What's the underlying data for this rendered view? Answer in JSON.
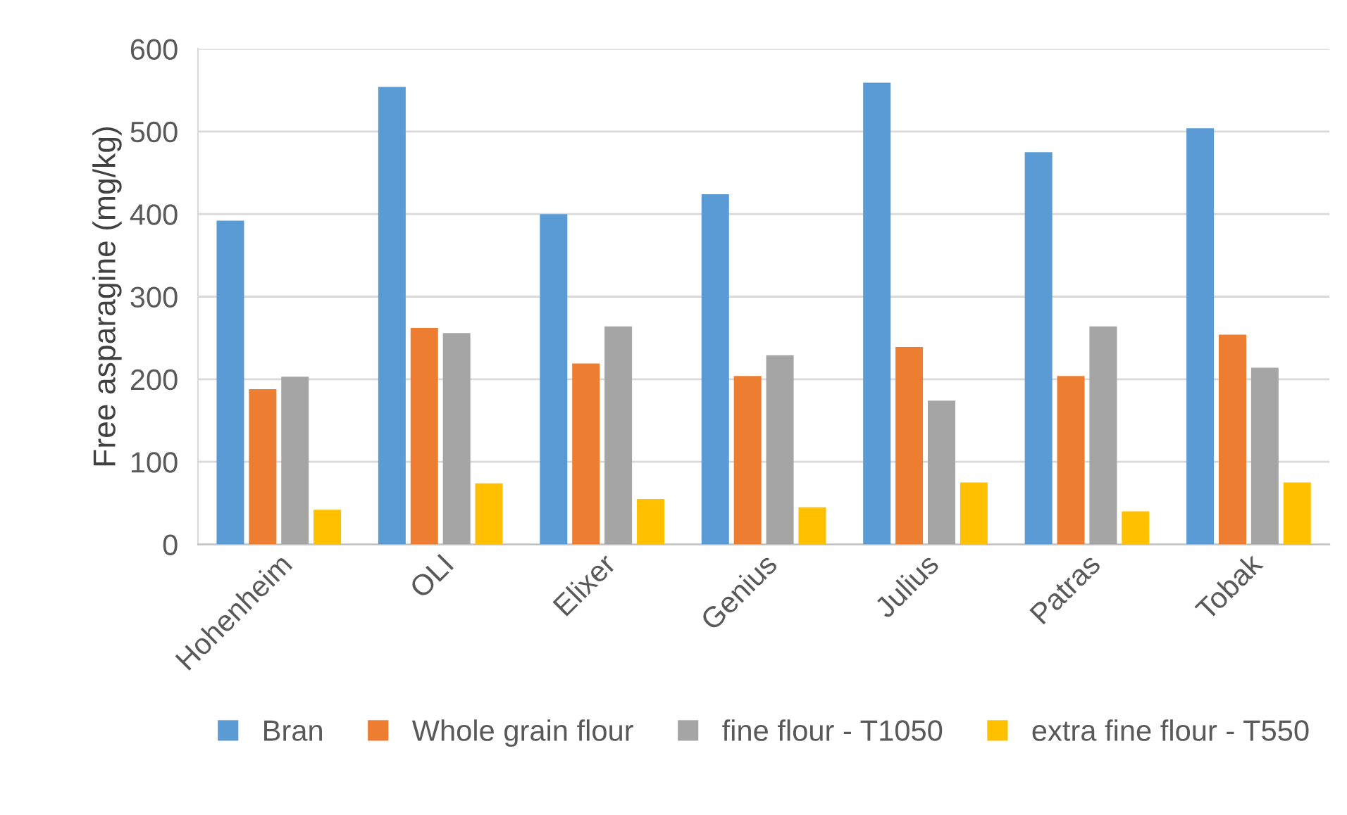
{
  "chart_data": {
    "type": "bar",
    "ylabel": "Free asparagine (mg/kg)",
    "categories": [
      "Hohenheim",
      "OLI",
      "Elixer",
      "Genius",
      "Julius",
      "Patras",
      "Tobak"
    ],
    "series": [
      {
        "name": "Bran",
        "color": "#5b9bd5",
        "values": [
          392,
          554,
          400,
          424,
          559,
          475,
          504
        ]
      },
      {
        "name": "Whole grain flour",
        "color": "#ed7d31",
        "values": [
          188,
          262,
          219,
          204,
          239,
          204,
          254
        ]
      },
      {
        "name": "fine flour - T1050",
        "color": "#a5a5a5",
        "values": [
          203,
          256,
          264,
          229,
          174,
          264,
          214
        ]
      },
      {
        "name": "extra fine flour - T550",
        "color": "#ffc000",
        "values": [
          42,
          74,
          55,
          45,
          75,
          40,
          75
        ]
      }
    ],
    "ylim": [
      0,
      600
    ],
    "yticks": [
      0,
      100,
      200,
      300,
      400,
      500,
      600
    ],
    "grid": "y",
    "legend": "bottom"
  }
}
